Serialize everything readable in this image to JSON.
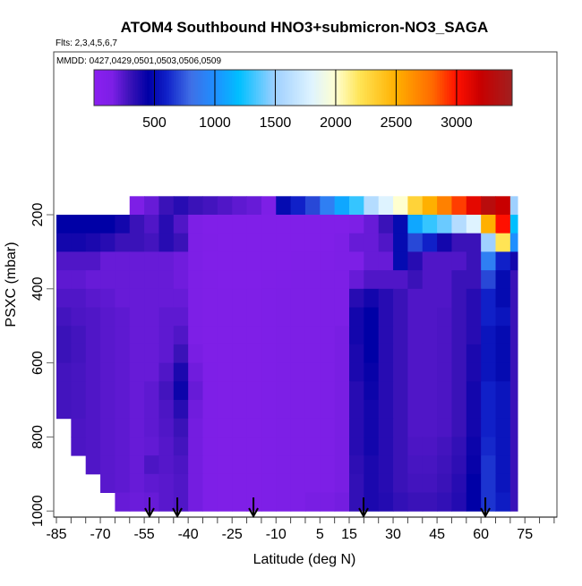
{
  "chart_data": {
    "type": "heatmap",
    "title": "ATOM4 Southbound HNO3+submicron-NO3_SAGA",
    "subtitle": "Flts: 2,3,4,5,6,7",
    "annotation": "MMDD: 0427,0429,0501,0503,0506,0509",
    "xlabel": "Latitude (deg N)",
    "ylabel": "PSXC (mbar)",
    "xlim": [
      -86,
      86
    ],
    "ylim": [
      1017,
      -240
    ],
    "x_ticks": [
      -85,
      -70,
      -55,
      -40,
      -25,
      -10,
      5,
      15,
      30,
      45,
      60,
      75
    ],
    "y_ticks": [
      200,
      400,
      600,
      800,
      1000
    ],
    "colorbar": {
      "ticks": [
        500,
        1000,
        1500,
        2000,
        2500,
        3000
      ],
      "range": [
        0,
        3460
      ],
      "placement": "top"
    },
    "colormap": [
      [
        0,
        "#8a1ff0"
      ],
      [
        150,
        "#7d1fe6"
      ],
      [
        300,
        "#3a12b8"
      ],
      [
        450,
        "#0000a6"
      ],
      [
        600,
        "#1020c8"
      ],
      [
        800,
        "#3f6fe6"
      ],
      [
        1000,
        "#1e8fff"
      ],
      [
        1200,
        "#00bfff"
      ],
      [
        1500,
        "#9fd0ff"
      ],
      [
        1800,
        "#def3ff"
      ],
      [
        2000,
        "#ffffd0"
      ],
      [
        2200,
        "#ffe455"
      ],
      [
        2500,
        "#ffb000"
      ],
      [
        2800,
        "#ff6a00"
      ],
      [
        3000,
        "#ff1000"
      ],
      [
        3200,
        "#c80000"
      ],
      [
        3460,
        "#a02020"
      ]
    ],
    "lat_bins_start": [
      -85,
      -80,
      -75,
      -70,
      -65,
      -60,
      -55,
      -50,
      -45,
      -40,
      -35,
      -30,
      -25,
      -20,
      -15,
      -10,
      -5,
      0,
      5,
      10,
      15,
      20,
      25,
      30,
      35,
      40,
      45,
      50,
      55,
      60,
      65,
      70
    ],
    "lat_bin_width": 5,
    "pressure_bins_start": [
      150,
      200,
      250,
      300,
      350,
      400,
      450,
      500,
      550,
      600,
      650,
      700,
      750,
      800,
      850,
      900,
      950
    ],
    "pressure_bin_width": 50,
    "values": [
      [
        null,
        null,
        null,
        null,
        null,
        150,
        200,
        300,
        350,
        300,
        280,
        250,
        220,
        200,
        150,
        500,
        600,
        700,
        900,
        1100,
        1300,
        1600,
        1800,
        2000,
        2300,
        2500,
        2700,
        2900,
        3100,
        3300,
        3200,
        1500
      ],
      [
        450,
        450,
        450,
        450,
        400,
        300,
        250,
        350,
        250,
        150,
        120,
        120,
        120,
        120,
        120,
        120,
        120,
        120,
        120,
        120,
        150,
        200,
        300,
        500,
        1100,
        1300,
        1400,
        1600,
        1800,
        2500,
        3000,
        1200
      ],
      [
        400,
        400,
        380,
        350,
        300,
        300,
        280,
        350,
        300,
        150,
        130,
        120,
        120,
        120,
        120,
        120,
        120,
        120,
        120,
        150,
        200,
        200,
        250,
        500,
        700,
        600,
        400,
        300,
        300,
        1500,
        2200,
        1000
      ],
      [
        250,
        250,
        250,
        200,
        200,
        200,
        200,
        200,
        180,
        150,
        120,
        120,
        120,
        120,
        120,
        120,
        130,
        130,
        130,
        150,
        150,
        200,
        200,
        500,
        350,
        250,
        250,
        250,
        300,
        900,
        600,
        400
      ],
      [
        220,
        220,
        200,
        200,
        200,
        200,
        200,
        200,
        180,
        150,
        130,
        120,
        120,
        120,
        130,
        140,
        150,
        150,
        150,
        150,
        200,
        250,
        250,
        250,
        300,
        250,
        250,
        300,
        300,
        700,
        500,
        300
      ],
      [
        250,
        250,
        230,
        220,
        200,
        200,
        200,
        200,
        200,
        150,
        130,
        130,
        130,
        130,
        140,
        150,
        150,
        150,
        150,
        150,
        350,
        400,
        350,
        300,
        250,
        250,
        250,
        300,
        350,
        600,
        500,
        300
      ],
      [
        280,
        260,
        250,
        230,
        220,
        200,
        200,
        220,
        220,
        150,
        130,
        130,
        130,
        130,
        140,
        150,
        150,
        150,
        150,
        150,
        400,
        450,
        350,
        300,
        250,
        250,
        260,
        300,
        350,
        600,
        550,
        300
      ],
      [
        300,
        280,
        250,
        230,
        220,
        200,
        200,
        220,
        250,
        150,
        130,
        130,
        130,
        130,
        140,
        150,
        150,
        150,
        150,
        160,
        400,
        450,
        350,
        300,
        250,
        250,
        260,
        300,
        350,
        550,
        500,
        300
      ],
      [
        300,
        280,
        250,
        230,
        220,
        200,
        200,
        220,
        300,
        160,
        130,
        130,
        130,
        130,
        140,
        150,
        150,
        150,
        150,
        160,
        380,
        450,
        350,
        300,
        250,
        250,
        260,
        300,
        380,
        550,
        500,
        300
      ],
      [
        280,
        270,
        250,
        230,
        220,
        200,
        200,
        250,
        380,
        180,
        140,
        130,
        130,
        130,
        140,
        150,
        150,
        150,
        150,
        160,
        380,
        430,
        350,
        300,
        250,
        250,
        260,
        300,
        380,
        550,
        500,
        300
      ],
      [
        280,
        270,
        250,
        230,
        220,
        200,
        220,
        280,
        420,
        200,
        140,
        130,
        130,
        130,
        140,
        150,
        150,
        150,
        150,
        160,
        350,
        420,
        350,
        300,
        250,
        250,
        260,
        300,
        400,
        600,
        550,
        300
      ],
      [
        280,
        270,
        250,
        230,
        220,
        200,
        220,
        260,
        350,
        180,
        140,
        130,
        130,
        130,
        140,
        150,
        150,
        150,
        150,
        160,
        350,
        400,
        350,
        300,
        250,
        250,
        260,
        300,
        400,
        600,
        550,
        300
      ],
      [
        null,
        260,
        250,
        230,
        220,
        200,
        220,
        250,
        300,
        170,
        140,
        130,
        130,
        130,
        140,
        150,
        150,
        150,
        150,
        160,
        350,
        400,
        350,
        300,
        250,
        250,
        260,
        300,
        400,
        600,
        550,
        300
      ],
      [
        null,
        260,
        250,
        230,
        220,
        200,
        210,
        240,
        280,
        170,
        140,
        130,
        130,
        130,
        140,
        150,
        150,
        150,
        150,
        160,
        350,
        400,
        350,
        300,
        260,
        260,
        280,
        320,
        420,
        620,
        550,
        300
      ],
      [
        null,
        null,
        250,
        230,
        220,
        200,
        260,
        240,
        260,
        170,
        140,
        130,
        130,
        130,
        140,
        150,
        150,
        150,
        150,
        160,
        330,
        380,
        350,
        300,
        270,
        270,
        290,
        330,
        430,
        650,
        550,
        300
      ],
      [
        null,
        null,
        null,
        230,
        220,
        200,
        220,
        230,
        250,
        170,
        140,
        130,
        130,
        130,
        140,
        150,
        150,
        150,
        150,
        160,
        320,
        380,
        350,
        300,
        280,
        280,
        300,
        350,
        450,
        650,
        550,
        300
      ],
      [
        null,
        null,
        null,
        null,
        200,
        190,
        200,
        230,
        250,
        170,
        140,
        130,
        130,
        130,
        140,
        150,
        150,
        160,
        160,
        170,
        320,
        380,
        360,
        320,
        300,
        300,
        320,
        360,
        450,
        650,
        580,
        300
      ]
    ],
    "arrows_lat": [
      -53.2,
      -43.7,
      -17.7,
      19.9,
      61.5
    ]
  }
}
